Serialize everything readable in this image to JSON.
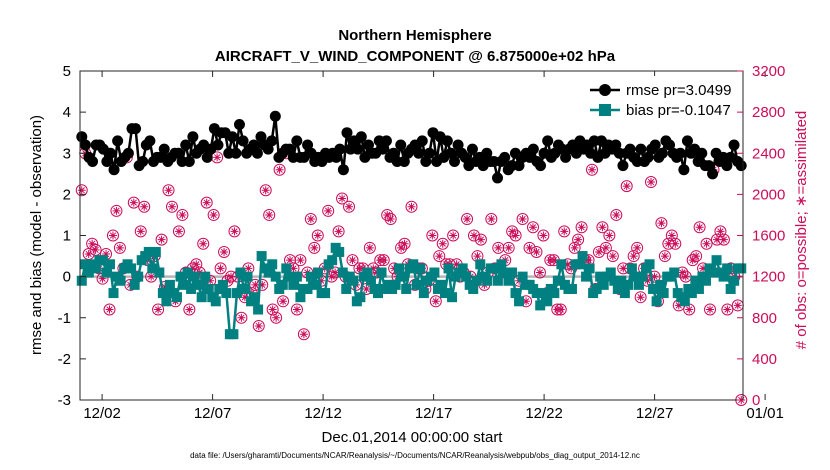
{
  "chart_data": {
    "type": "line",
    "title": "Northern Hemisphere",
    "subtitle": "AIRCRAFT_V_WIND_COMPONENT @ 6.875000e+02 hPa",
    "xlabel": "Dec.01,2014 00:00:00 start",
    "ylabel": "rmse and bias (model - observation)",
    "ylabel_right": "# of obs: o=possible; ∗=assimilated",
    "xlim": [
      0,
      30
    ],
    "ylim": [
      -3,
      5
    ],
    "ylim_right": [
      0,
      3200
    ],
    "x_ticks": [
      1,
      6,
      11,
      16,
      21,
      26,
      31
    ],
    "x_tick_labels": [
      "12/02",
      "12/07",
      "12/12",
      "12/17",
      "12/22",
      "12/27",
      "01/01"
    ],
    "y_ticks": [
      "-3",
      "-2",
      "-1",
      "0",
      "1",
      "2",
      "3",
      "4",
      "5"
    ],
    "y_ticks_right": [
      "0",
      "400",
      "800",
      "1200",
      "1600",
      "2000",
      "2400",
      "2800",
      "3200"
    ],
    "footnote": "data file: /Users/gharamti/Documents/NCAR/Reanalysis/~/Documents/NCAR/Reanalysis/webpub/obs_diag_output_2014-12.nc",
    "series": [
      {
        "name": "rmse",
        "legend": "rmse pr=3.0499",
        "color": "#000000",
        "values": [
          3.4,
          3.2,
          2.9,
          2.8,
          3.2,
          3.2,
          3.1,
          2.8,
          3.0,
          2.6,
          3.3,
          2.8,
          2.9,
          3.0,
          3.6,
          3.6,
          2.7,
          2.8,
          3.2,
          3.3,
          2.8,
          2.9,
          2.9,
          3.1,
          2.8,
          2.9,
          3.0,
          3.0,
          2.8,
          3.2,
          2.8,
          3.4,
          3.0,
          3.1,
          3.2,
          2.9,
          3.1,
          3.6,
          3.2,
          3.5,
          3.5,
          3.0,
          3.4,
          3.0,
          3.7,
          3.3,
          3.0,
          3.1,
          3.2,
          3.0,
          3.4,
          3.2,
          3.1,
          3.3,
          3.9,
          2.9,
          3.0,
          3.1,
          3.1,
          2.9,
          3.3,
          2.9,
          2.9,
          3.2,
          3.0,
          2.8,
          2.9,
          2.8,
          3.0,
          2.9,
          3.0,
          2.9,
          3.1,
          2.6,
          3.5,
          3.1,
          3.3,
          3.1,
          3.4,
          2.9,
          3.2,
          3.0,
          3.0,
          3.3,
          3.1,
          3.3,
          2.9,
          3.0,
          2.8,
          3.2,
          2.8,
          3.0,
          3.1,
          3.2,
          3.0,
          3.3,
          2.8,
          3.0,
          3.5,
          2.8,
          3.4,
          2.9,
          3.3,
          3.0,
          2.8,
          3.2,
          3.0,
          2.9,
          2.7,
          3.1,
          2.8,
          2.9,
          2.7,
          3.0,
          2.8,
          2.8,
          2.4,
          2.8,
          2.9,
          2.6,
          2.7,
          3.0,
          2.7,
          2.9,
          3.0,
          2.9,
          3.1,
          2.8,
          2.7,
          3.0,
          3.3,
          2.9,
          3.0,
          3.2,
          3.1,
          2.9,
          3.1,
          3.2,
          3.0,
          3.3,
          3.1,
          3.2,
          3.0,
          3.3,
          2.9,
          3.3,
          3.0,
          3.2,
          3.1,
          3.2,
          3.0,
          2.7,
          3.0,
          3.1,
          2.9,
          2.8,
          3.1,
          2.8,
          2.9,
          3.1,
          3.2,
          2.9,
          3.0,
          3.3,
          3.2,
          3.0,
          2.9,
          3.0,
          2.6,
          3.3,
          3.0,
          3.1,
          2.8,
          3.0,
          2.7,
          2.7,
          2.5,
          3.0,
          2.8,
          2.9,
          2.7,
          2.9,
          3.2,
          2.8,
          2.7
        ]
      },
      {
        "name": "bias",
        "legend": "bias pr=-0.1047",
        "color": "#008080",
        "values": [
          -0.1,
          0.3,
          0.1,
          0.3,
          0.2,
          0.4,
          0.4,
          0.1,
          0.3,
          -0.4,
          0.0,
          -0.1,
          0.2,
          0.3,
          0.2,
          -0.2,
          0.0,
          0.4,
          0.5,
          0.6,
          0.2,
          0.6,
          0.1,
          -0.4,
          -0.6,
          -0.2,
          -0.4,
          -0.5,
          0.0,
          -0.2,
          0.1,
          -0.3,
          0.0,
          -0.2,
          -0.5,
          0.0,
          -0.3,
          -0.5,
          -0.6,
          -0.3,
          -0.2,
          -0.4,
          -1.4,
          -1.4,
          -0.4,
          0.1,
          -0.3,
          0.0,
          -0.6,
          -0.5,
          -0.8,
          0.5,
          0.2,
          0.1,
          0.3,
          0.0,
          -0.3,
          -0.2,
          0.2,
          0.0,
          -0.2,
          0.0,
          -0.5,
          -0.3,
          -0.3,
          0.0,
          -0.2,
          0.1,
          -0.4,
          -0.4,
          0.3,
          0.4,
          0.7,
          0.6,
          0.1,
          -0.3,
          0.0,
          -0.1,
          -0.6,
          -0.5,
          0.0,
          0.1,
          -0.1,
          -0.3,
          -0.4,
          0.1,
          -0.3,
          -0.2,
          -0.3,
          -0.2,
          0.2,
          0.0,
          -0.3,
          0.2,
          0.3,
          -0.2,
          0.2,
          -0.4,
          -0.1,
          0.0,
          0.1,
          -0.3,
          -0.2,
          -0.4,
          0.2,
          -0.5,
          0.0,
          0.1,
          0.2,
          0.0,
          -0.2,
          -0.3,
          -0.1,
          0.3,
          0.0,
          -0.1,
          0.2,
          0.2,
          -0.1,
          0.3,
          0.1,
          -0.1,
          0.1,
          -0.4,
          -0.6,
          0.0,
          -0.2,
          -0.2,
          -0.3,
          -0.4,
          -0.7,
          -0.4,
          -0.6,
          -0.3,
          -0.4,
          -0.1,
          0.3,
          -0.2,
          -0.3,
          -0.3,
          0.3,
          0.3,
          0.5,
          0.0,
          0.2,
          -0.4,
          -0.3,
          0.0,
          -0.2,
          0.0,
          0.1,
          -0.1,
          -0.3,
          -0.1,
          -0.4,
          -0.2,
          0.2,
          0.0,
          -0.2,
          0.0,
          0.2,
          0.3,
          -0.3,
          -0.6,
          -0.2,
          -0.4,
          0.0,
          0.0,
          0.1,
          -0.4,
          -0.5,
          -0.6,
          -0.3,
          -0.4,
          -0.1,
          -0.3,
          0.0,
          -0.1,
          0.2,
          0.1,
          0.4,
          0.1,
          0.0,
          0.2,
          -0.3,
          -0.1,
          0.2,
          0.2
        ]
      },
      {
        "name": "possible",
        "axis": "right",
        "marker": "circle",
        "color": "#cc0d5a",
        "values": [
          2040,
          2400,
          1420,
          1520,
          1460,
          1280,
          1180,
          1420,
          880,
          1600,
          1840,
          1480,
          1280,
          2360,
          1120,
          1920,
          1200,
          1640,
          1880,
          1360,
          1200,
          1400,
          880,
          1560,
          1100,
          2040,
          1880,
          960,
          1640,
          1800,
          1240,
          880,
          1280,
          1320,
          1240,
          1520,
          1920,
          1160,
          1800,
          2360,
          1280,
          1440,
          1160,
          1200,
          1640,
          1200,
          800,
          1000,
          1280,
          1040,
          1120,
          720,
          1120,
          2040,
          1800,
          880,
          800,
          2240,
          960,
          2400,
          1360,
          1280,
          880,
          1360,
          640,
          1240,
          1760,
          1480,
          1600,
          1160,
          1280,
          1840,
          1200,
          1240,
          1640,
          1960,
          1200,
          1880,
          1360,
          1120,
          1280,
          1280,
          1080,
          1480,
          1280,
          1240,
          1360,
          1360,
          1800,
          1760,
          1280,
          1200,
          1480,
          1520,
          1320,
          1880,
          1120,
          1280,
          1280,
          1080,
          1160,
          1600,
          960,
          1400,
          1520,
          1320,
          1320,
          1600,
          1320,
          1200,
          1240,
          1760,
          1200,
          1600,
          1400,
          1560,
          1120,
          1240,
          1760,
          1280,
          1480,
          1240,
          1360,
          1480,
          1640,
          1600,
          1160,
          1760,
          960,
          1480,
          1680,
          1440,
          1240,
          1600,
          1040,
          1360,
          1360,
          880,
          880,
          1640,
          1320,
          1280,
          1480,
          1560,
          1680,
          1360,
          1360,
          2240,
          1080,
          1440,
          1680,
          1480,
          1600,
          1400,
          1800,
          1080,
          1280,
          2080,
          1280,
          1400,
          1480,
          1000,
          1280,
          1160,
          2120,
          1200,
          960,
          1720,
          1400,
          1520,
          1600,
          1520,
          920,
          1240,
          1200,
          880,
          1360,
          1400,
          1680,
          1280,
          1520,
          880,
          2240,
          1560,
          1640,
          1560,
          880,
          1280,
          1200,
          920,
          0
        ]
      }
    ]
  }
}
